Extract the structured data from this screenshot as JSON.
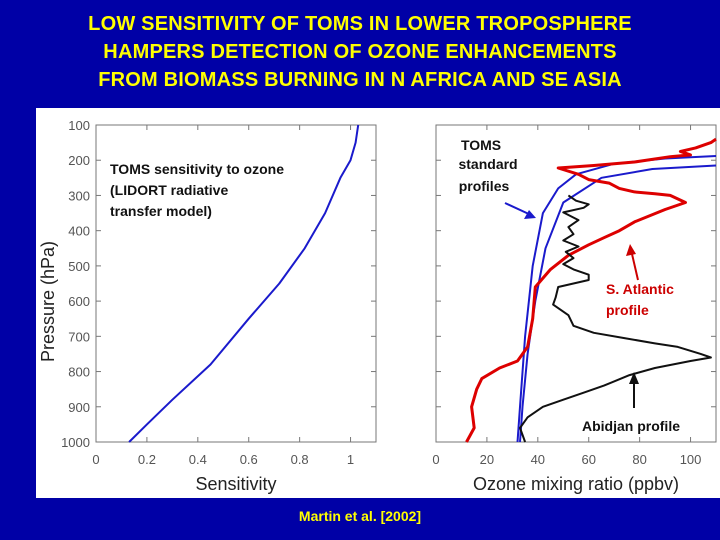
{
  "slide": {
    "title_lines": [
      "LOW SENSITIVITY OF TOMS IN LOWER TROPOSPHERE",
      "HAMPERS DETECTION OF OZONE ENHANCEMENTS",
      "FROM BIOMASS BURNING IN N AFRICA AND SE ASIA"
    ],
    "citation": "Martin et al. [2002]",
    "colors": {
      "background": "#0000a6",
      "title": "#ffff00"
    }
  },
  "chart_data": [
    {
      "type": "line",
      "ylabel": "Pressure (hPa)",
      "xlabel": "Sensitivity",
      "xlim": [
        0,
        1.1
      ],
      "ylim": [
        1000,
        100
      ],
      "y_inverted": true,
      "x_ticks": [
        "0",
        "0.2",
        "0.4",
        "0.6",
        "0.8",
        "1"
      ],
      "y_ticks": [
        "100",
        "200",
        "300",
        "400",
        "500",
        "600",
        "700",
        "800",
        "900",
        "1000"
      ],
      "annotations": {
        "sensitivity_lines": [
          "TOMS sensitivity to ozone",
          "(LIDORT radiative",
          "transfer model)"
        ]
      },
      "series": [
        {
          "color": "#1a1acc",
          "points": [
            [
              0.13,
              1000
            ],
            [
              0.2,
              950
            ],
            [
              0.3,
              880
            ],
            [
              0.45,
              780
            ],
            [
              0.6,
              650
            ],
            [
              0.72,
              550
            ],
            [
              0.82,
              450
            ],
            [
              0.9,
              350
            ],
            [
              0.96,
              250
            ],
            [
              1.0,
              200
            ],
            [
              1.02,
              150
            ],
            [
              1.03,
              100
            ]
          ]
        }
      ]
    },
    {
      "type": "line",
      "xlabel": "Ozone mixing ratio (ppbv)",
      "xlim": [
        0,
        110
      ],
      "ylim": [
        1000,
        100
      ],
      "y_inverted": true,
      "x_ticks": [
        "0",
        "20",
        "40",
        "60",
        "80",
        "100"
      ],
      "annotations": {
        "toms_profiles_lines": [
          "TOMS",
          "standard",
          "profiles"
        ],
        "s_atlantic_lines": [
          "S. Atlantic",
          "profile"
        ],
        "abidjan": "Abidjan profile"
      },
      "series": [
        {
          "name": "TOMS standard profile 1",
          "color": "#1a1acc",
          "points": [
            [
              32,
              1000
            ],
            [
              33,
              900
            ],
            [
              35,
              700
            ],
            [
              38,
              500
            ],
            [
              42,
              350
            ],
            [
              48,
              280
            ],
            [
              55,
              240
            ],
            [
              70,
              210
            ],
            [
              90,
              195
            ],
            [
              110,
              188
            ]
          ]
        },
        {
          "name": "TOMS standard profile 2",
          "color": "#1a1acc",
          "points": [
            [
              33,
              1000
            ],
            [
              34,
              900
            ],
            [
              36,
              750
            ],
            [
              39,
              600
            ],
            [
              43,
              450
            ],
            [
              50,
              320
            ],
            [
              65,
              250
            ],
            [
              85,
              225
            ],
            [
              110,
              215
            ]
          ]
        },
        {
          "name": "S. Atlantic profile",
          "color": "#dd0000",
          "points": [
            [
              12,
              1000
            ],
            [
              15,
              960
            ],
            [
              14,
              900
            ],
            [
              16,
              850
            ],
            [
              18,
              820
            ],
            [
              25,
              790
            ],
            [
              32,
              770
            ],
            [
              36,
              730
            ],
            [
              38,
              650
            ],
            [
              39,
              560
            ],
            [
              45,
              510
            ],
            [
              52,
              470
            ],
            [
              60,
              440
            ],
            [
              66,
              420
            ],
            [
              72,
              400
            ],
            [
              78,
              375
            ],
            [
              90,
              340
            ],
            [
              98,
              320
            ],
            [
              92,
              300
            ],
            [
              86,
              295
            ],
            [
              78,
              290
            ],
            [
              72,
              280
            ],
            [
              68,
              265
            ],
            [
              60,
              255
            ],
            [
              56,
              240
            ],
            [
              48,
              222
            ],
            [
              62,
              215
            ],
            [
              78,
              205
            ],
            [
              92,
              190
            ],
            [
              100,
              185
            ],
            [
              96,
              175
            ],
            [
              102,
              165
            ],
            [
              108,
              150
            ],
            [
              110,
              140
            ]
          ]
        },
        {
          "name": "Abidjan profile",
          "color": "#111111",
          "points": [
            [
              35,
              1000
            ],
            [
              33,
              960
            ],
            [
              36,
              930
            ],
            [
              42,
              900
            ],
            [
              50,
              880
            ],
            [
              58,
              860
            ],
            [
              66,
              840
            ],
            [
              76,
              810
            ],
            [
              86,
              790
            ],
            [
              100,
              770
            ],
            [
              108,
              760
            ],
            [
              104,
              750
            ],
            [
              95,
              730
            ],
            [
              86,
              720
            ],
            [
              74,
              705
            ],
            [
              62,
              690
            ],
            [
              54,
              670
            ],
            [
              52,
              640
            ],
            [
              46,
              610
            ],
            [
              47,
              590
            ],
            [
              48,
              560
            ],
            [
              60,
              540
            ],
            [
              60,
              525
            ],
            [
              54,
              510
            ],
            [
              50,
              495
            ],
            [
              54,
              478
            ],
            [
              51,
              460
            ],
            [
              56,
              445
            ],
            [
              50,
              428
            ],
            [
              54,
              410
            ],
            [
              52,
              390
            ],
            [
              56,
              370
            ],
            [
              50,
              348
            ],
            [
              58,
              335
            ],
            [
              60,
              325
            ],
            [
              55,
              315
            ],
            [
              52,
              300
            ]
          ]
        }
      ]
    }
  ]
}
